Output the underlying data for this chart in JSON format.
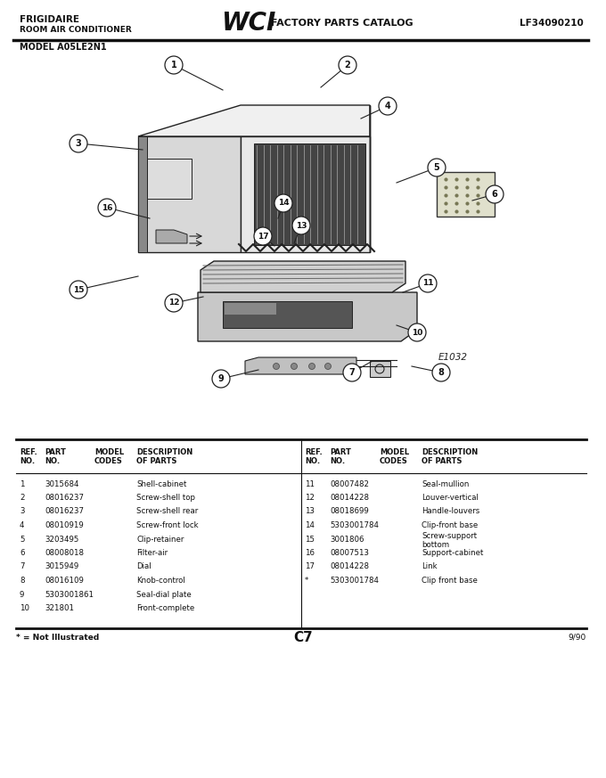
{
  "title_left1": "FRIGIDAIRE",
  "title_left2": "ROOM AIR CONDITIONER",
  "wci_text": "WCI",
  "catalog_text": "FACTORY PARTS CATALOG",
  "title_right": "LF34090210",
  "model": "MODEL A05LE2N1",
  "diagram_code": "E1032",
  "page": "C7",
  "date": "9/90",
  "footnote": "* = Not Illustrated",
  "bg_color": "#ffffff",
  "left_parts": [
    [
      "1",
      "3015684",
      "",
      "Shell-cabinet"
    ],
    [
      "2",
      "08016237",
      "",
      "Screw-shell top"
    ],
    [
      "3",
      "08016237",
      "",
      "Screw-shell rear"
    ],
    [
      "4",
      "08010919",
      "",
      "Screw-front lock"
    ],
    [
      "5",
      "3203495",
      "",
      "Clip-retainer"
    ],
    [
      "6",
      "08008018",
      "",
      "Filter-air"
    ],
    [
      "7",
      "3015949",
      "",
      "Dial"
    ],
    [
      "8",
      "08016109",
      "",
      "Knob-control"
    ],
    [
      "9",
      "5303001861",
      "",
      "Seal-dial plate"
    ],
    [
      "10",
      "321801",
      "",
      "Front-complete"
    ]
  ],
  "right_parts": [
    [
      "11",
      "08007482",
      "",
      "Seal-mullion"
    ],
    [
      "12",
      "08014228",
      "",
      "Louver-vertical"
    ],
    [
      "13",
      "08018699",
      "",
      "Handle-louvers"
    ],
    [
      "14",
      "5303001784",
      "",
      "Clip-front base"
    ],
    [
      "15",
      "3001806",
      "",
      "Screw-support bottom"
    ],
    [
      "16",
      "08007513",
      "",
      "Support-cabinet"
    ],
    [
      "17",
      "08014228",
      "",
      "Link"
    ],
    [
      "*",
      "5303001784",
      "",
      "Clip front base"
    ]
  ],
  "label_positions": {
    "1": [
      195,
      800,
      250,
      772
    ],
    "2": [
      390,
      800,
      360,
      775
    ],
    "3": [
      88,
      712,
      160,
      705
    ],
    "4": [
      435,
      754,
      405,
      740
    ],
    "5": [
      490,
      685,
      445,
      668
    ],
    "6": [
      555,
      655,
      530,
      648
    ],
    "7": [
      395,
      455,
      418,
      468
    ],
    "8": [
      495,
      455,
      462,
      462
    ],
    "9": [
      248,
      448,
      290,
      458
    ],
    "10": [
      468,
      500,
      445,
      508
    ],
    "11": [
      480,
      555,
      452,
      545
    ],
    "12": [
      195,
      533,
      228,
      540
    ],
    "13": [
      338,
      620,
      330,
      600
    ],
    "14": [
      318,
      645,
      312,
      628
    ],
    "15": [
      88,
      548,
      155,
      563
    ],
    "16": [
      120,
      640,
      168,
      628
    ],
    "17": [
      295,
      608,
      308,
      597
    ]
  }
}
